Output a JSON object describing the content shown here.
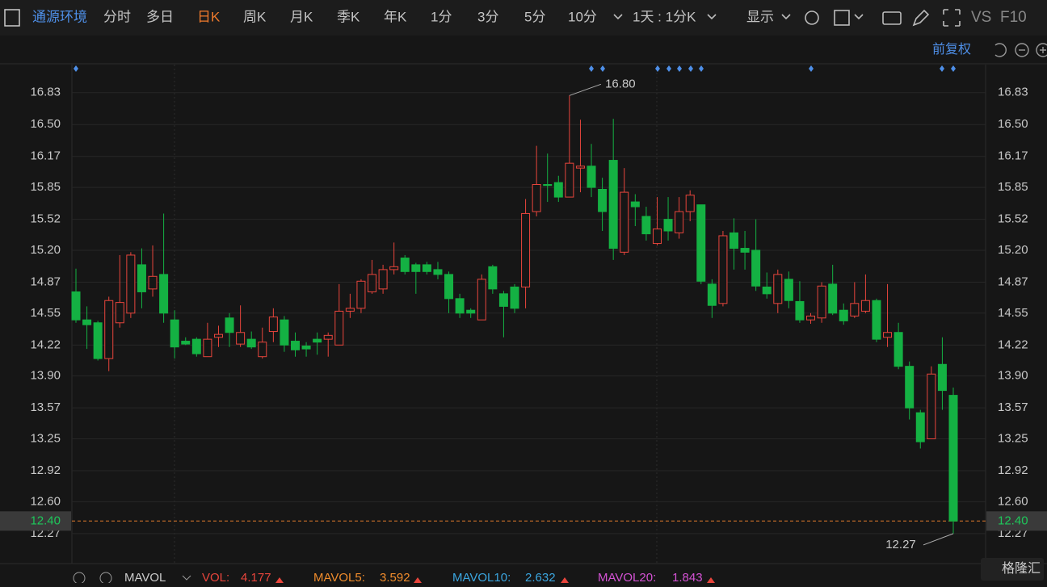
{
  "toolbar": {
    "stock_name": "通源环境",
    "periods": [
      {
        "label": "分时"
      },
      {
        "label": "多日"
      },
      {
        "label": "日K",
        "active": true
      },
      {
        "label": "周K"
      },
      {
        "label": "月K"
      },
      {
        "label": "季K"
      },
      {
        "label": "年K"
      },
      {
        "label": "1分"
      },
      {
        "label": "3分"
      },
      {
        "label": "5分"
      },
      {
        "label": "10分"
      }
    ],
    "range": "1天 : 1分K",
    "display": "显示",
    "vs": "VS",
    "f10": "F10",
    "adjust": "前复权"
  },
  "chart_data": {
    "type": "candlestick",
    "up_color": "#e8453c",
    "down_color": "#14b143",
    "open": [
      14.77,
      14.48,
      14.45,
      14.08,
      14.45,
      14.55,
      15.05,
      14.8,
      14.95,
      14.48,
      14.26,
      14.28,
      14.1,
      14.3,
      14.5,
      14.23,
      14.28,
      14.1,
      14.36,
      14.48,
      14.26,
      14.21,
      14.28,
      14.28,
      14.22,
      14.57,
      14.6,
      14.77,
      14.8,
      15.0,
      15.12,
      15.05,
      15.05,
      15.0,
      14.95,
      14.7,
      14.58,
      14.48,
      15.03,
      14.75,
      14.82,
      14.82,
      15.6,
      15.88,
      15.9,
      15.75,
      16.05,
      16.07,
      15.83,
      16.13,
      15.18,
      15.7,
      15.55,
      15.27,
      15.52,
      15.38,
      15.6,
      15.67,
      14.85,
      14.65,
      15.38,
      15.22,
      15.2,
      14.82,
      14.65,
      14.9,
      14.67,
      14.48,
      14.5,
      14.85,
      14.58,
      14.52,
      14.57,
      14.68,
      14.3,
      14.35,
      14.0,
      13.52,
      13.25,
      14.02,
      13.7
    ],
    "high": [
      15.01,
      14.62,
      14.47,
      14.72,
      15.15,
      15.18,
      15.22,
      15.25,
      15.58,
      14.58,
      14.3,
      14.3,
      14.45,
      14.42,
      14.55,
      14.63,
      14.36,
      14.4,
      14.6,
      14.52,
      14.35,
      14.25,
      14.35,
      14.35,
      14.85,
      14.75,
      14.9,
      15.1,
      15.05,
      15.28,
      15.15,
      15.07,
      15.08,
      15.08,
      14.98,
      14.75,
      14.6,
      14.95,
      15.05,
      14.78,
      14.85,
      15.73,
      16.28,
      16.2,
      15.97,
      16.8,
      16.55,
      16.3,
      15.95,
      16.56,
      16.05,
      15.78,
      15.65,
      15.75,
      15.75,
      15.75,
      15.82,
      15.67,
      14.9,
      15.4,
      15.53,
      15.4,
      15.52,
      14.97,
      15.0,
      14.98,
      14.88,
      14.55,
      14.87,
      15.05,
      14.65,
      14.87,
      14.95,
      14.7,
      14.85,
      14.45,
      14.05,
      13.55,
      14.0,
      14.3,
      13.78
    ],
    "low": [
      14.45,
      14.18,
      14.06,
      13.95,
      14.4,
      14.5,
      14.6,
      14.72,
      14.45,
      14.08,
      14.22,
      14.1,
      14.1,
      14.2,
      14.2,
      14.2,
      14.18,
      14.08,
      14.25,
      14.15,
      14.1,
      14.1,
      14.12,
      14.1,
      14.22,
      14.5,
      14.55,
      14.75,
      14.75,
      14.95,
      14.95,
      14.75,
      14.95,
      14.9,
      14.55,
      14.5,
      14.5,
      14.48,
      14.75,
      14.3,
      14.55,
      14.6,
      15.55,
      15.7,
      15.7,
      15.75,
      15.8,
      15.75,
      15.4,
      15.1,
      15.15,
      15.45,
      15.3,
      15.25,
      15.3,
      15.32,
      15.5,
      14.85,
      14.5,
      14.62,
      15.0,
      15.0,
      14.78,
      14.7,
      14.55,
      14.6,
      14.45,
      14.44,
      14.45,
      14.53,
      14.43,
      14.5,
      14.55,
      14.25,
      14.2,
      13.97,
      13.45,
      13.15,
      13.25,
      13.55,
      12.27
    ],
    "close": [
      14.48,
      14.43,
      14.08,
      14.68,
      14.66,
      15.15,
      14.77,
      14.93,
      14.55,
      14.2,
      14.23,
      14.13,
      14.28,
      14.33,
      14.35,
      14.35,
      14.2,
      14.25,
      14.51,
      14.22,
      14.17,
      14.18,
      14.25,
      14.32,
      14.57,
      14.6,
      14.88,
      14.95,
      15.0,
      15.03,
      14.98,
      14.98,
      14.98,
      14.95,
      14.7,
      14.55,
      14.55,
      14.9,
      14.8,
      14.62,
      14.6,
      15.58,
      15.88,
      15.87,
      15.75,
      16.1,
      16.07,
      15.85,
      15.6,
      15.22,
      15.8,
      15.65,
      15.37,
      15.42,
      15.4,
      15.6,
      15.77,
      14.88,
      14.63,
      15.35,
      15.22,
      15.18,
      14.83,
      14.75,
      14.95,
      14.68,
      14.48,
      14.52,
      14.83,
      14.55,
      14.47,
      14.65,
      14.68,
      14.28,
      14.35,
      14.0,
      13.57,
      13.22,
      13.92,
      13.75,
      12.4
    ],
    "ylim": [
      11.96,
      17.12
    ],
    "yticks": [
      16.83,
      {
        "value": 16.5,
        "label": "16.50"
      },
      16.17,
      15.85,
      15.52,
      {
        "value": 15.2,
        "label": "15.20"
      },
      14.87,
      14.55,
      14.22,
      {
        "value": 13.9,
        "label": "13.90"
      },
      13.57,
      13.25,
      12.92,
      {
        "value": 12.6,
        "label": "12.60"
      },
      12.27
    ],
    "last_price": {
      "value": 12.4,
      "label": "12.40"
    },
    "annotations": [
      {
        "value": 16.8,
        "label": "16.80"
      },
      {
        "value": 12.27,
        "label": "12.27"
      }
    ]
  },
  "indicator_bar": {
    "name": "MAVOL",
    "vol_label": "VOL:",
    "vol": 4.177,
    "ma5_label": "MAVOL5:",
    "ma5": 3.592,
    "ma10_label": "MAVOL10:",
    "ma10": 2.632,
    "ma20_label": "MAVOL20:",
    "ma20": 1.843
  },
  "watermark": "格隆汇"
}
